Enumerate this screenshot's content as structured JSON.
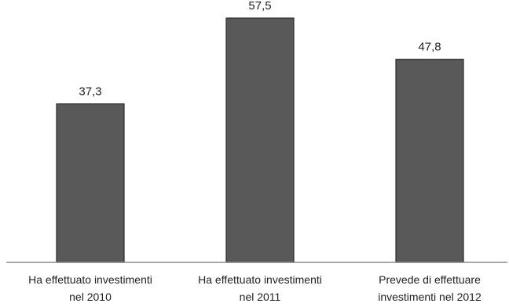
{
  "chart_data": {
    "type": "bar",
    "categories": [
      [
        "Ha effettuato investimenti",
        "nel 2010"
      ],
      [
        "Ha effettuato investimenti",
        "nel 2011"
      ],
      [
        "Prevede di effettuare",
        "investimenti nel 2012"
      ]
    ],
    "values": [
      37.3,
      57.5,
      47.8
    ],
    "value_labels": [
      "37,3",
      "57,5",
      "47,8"
    ],
    "ylim": [
      0,
      60
    ],
    "grid": false,
    "legend": "none",
    "bar_color": "#595959"
  }
}
